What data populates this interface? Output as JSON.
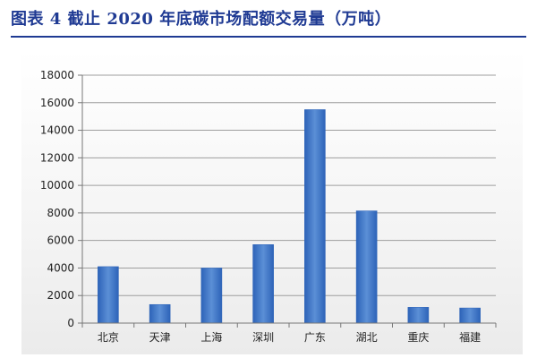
{
  "title": "图表 4 截止 2020 年底碳市场配额交易量（万吨）",
  "colors": {
    "title": "#1f3a93",
    "bar_light": "#5b8fd6",
    "bar_dark": "#2d63b8",
    "grid": "#9e9e9e"
  },
  "chart_data": {
    "type": "bar",
    "title": "",
    "xlabel": "",
    "ylabel": "",
    "categories": [
      "北京",
      "天津",
      "上海",
      "深圳",
      "广东",
      "湖北",
      "重庆",
      "福建"
    ],
    "values": [
      4100,
      1350,
      4000,
      5700,
      15500,
      8150,
      1150,
      1100
    ],
    "ylim": [
      0,
      18000
    ],
    "yticks": [
      0,
      2000,
      4000,
      6000,
      8000,
      10000,
      12000,
      14000,
      16000,
      18000
    ],
    "grid": true,
    "legend": "none"
  }
}
